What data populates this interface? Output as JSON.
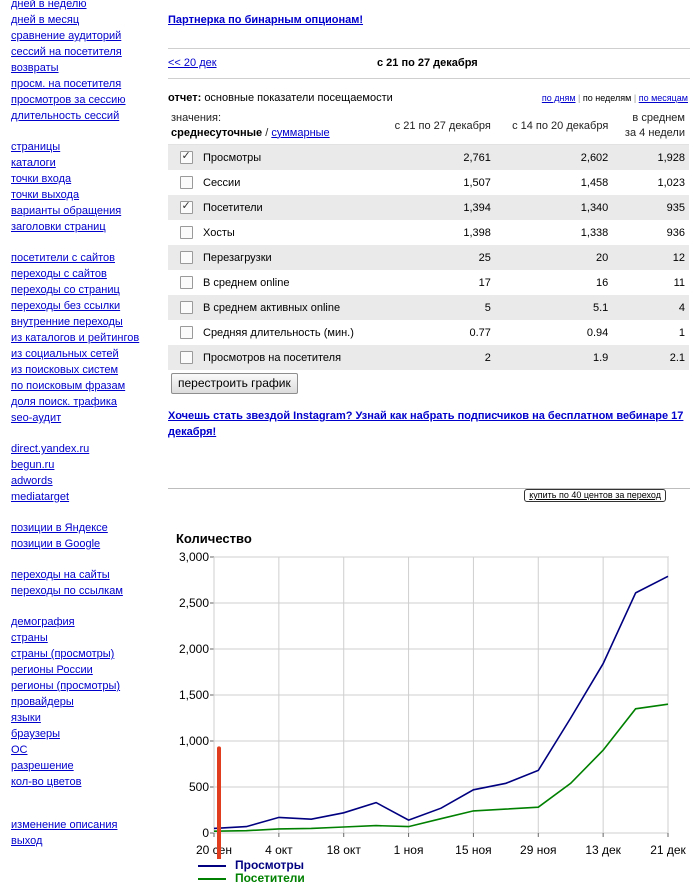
{
  "sidebar": {
    "groups": [
      [
        "дней в неделю",
        "дней в месяц",
        "сравнение аудиторий",
        "сессий на посетителя",
        "возвраты",
        "просм. на посетителя",
        "просмотров за сессию",
        "длительность сессий"
      ],
      [
        "страницы",
        "каталоги",
        "точки входа",
        "точки выхода",
        "варианты обращения",
        "заголовки страниц"
      ],
      [
        "посетители с сайтов",
        "переходы с сайтов",
        "переходы со страниц",
        "переходы без ссылки",
        "внутренние переходы",
        "из каталогов и рейтингов",
        "из социальных сетей",
        "из поисковых систем",
        "по поисковым фразам",
        "доля поиск. трафика",
        "seo-аудит"
      ],
      [
        "direct.yandex.ru",
        "begun.ru",
        "adwords",
        "mediatarget"
      ],
      [
        "позиции в Яндексе",
        "позиции в Google"
      ],
      [
        "переходы на сайты",
        "переходы по ссылкам"
      ],
      [
        "демография",
        "страны",
        "страны (просмотры)",
        "регионы России",
        "регионы (просмотры)",
        "провайдеры",
        "языки",
        "браузеры",
        "ОС",
        "разрешение",
        "кол-во цветов"
      ],
      [
        "изменение описания",
        "выход"
      ]
    ]
  },
  "promo1": "Партнерка по бинарным опционам!",
  "weeknav": {
    "prev": "<< 20 дек",
    "current": "с 21 по 27 декабря"
  },
  "report": {
    "label": "отчет:",
    "title": "основные показатели посещаемости",
    "period_links": [
      "по дням",
      "по неделям",
      "по месяцам"
    ]
  },
  "table": {
    "values_label": "значения:",
    "mode_active": "среднесуточные",
    "mode_sep": " / ",
    "mode_other": "суммарные",
    "col1": "с 21 по 27 декабря",
    "col2": "с 14 по 20 декабря",
    "col3_line1": "в среднем",
    "col3_line2": "за 4 недели",
    "rows": [
      {
        "checked": true,
        "name": "Просмотры",
        "c1": "2,761",
        "c2": "2,602",
        "c3": "1,928"
      },
      {
        "checked": false,
        "name": "Сессии",
        "c1": "1,507",
        "c2": "1,458",
        "c3": "1,023"
      },
      {
        "checked": true,
        "name": "Посетители",
        "c1": "1,394",
        "c2": "1,340",
        "c3": "935"
      },
      {
        "checked": false,
        "name": "Хосты",
        "c1": "1,398",
        "c2": "1,338",
        "c3": "936"
      },
      {
        "checked": false,
        "name": "Перезагрузки",
        "c1": "25",
        "c2": "20",
        "c3": "12"
      },
      {
        "checked": false,
        "name": "В среднем online",
        "c1": "17",
        "c2": "16",
        "c3": "11"
      },
      {
        "checked": false,
        "name": "В среднем активных online",
        "c1": "5",
        "c2": "5.1",
        "c3": "4"
      },
      {
        "checked": false,
        "name": "Средняя длительность (мин.)",
        "c1": "0.77",
        "c2": "0.94",
        "c3": "1"
      },
      {
        "checked": false,
        "name": "Просмотров на посетителя",
        "c1": "2",
        "c2": "1.9",
        "c3": "2.1"
      }
    ]
  },
  "rebuild_button": "перестроить график",
  "promo2": "Хочешь стать звездой Instagram? Узнай как набрать подписчиков на бесплатном вебинаре 17 декабря!",
  "buy_button": "купить по 40 центов за переход",
  "chart_data": {
    "type": "line",
    "ylabel": "Количество",
    "ylim": [
      0,
      3000
    ],
    "yticks": [
      "0",
      "500",
      "1,000",
      "1,500",
      "2,000",
      "2,500",
      "3,000"
    ],
    "xtick_labels": [
      "20 сен",
      "4 окт",
      "18 окт",
      "1 ноя",
      "15 ноя",
      "29 ноя",
      "13 дек",
      "21 дек"
    ],
    "x": [
      "2015-09-20",
      "2015-09-27",
      "2015-10-04",
      "2015-10-11",
      "2015-10-18",
      "2015-10-25",
      "2015-11-01",
      "2015-11-08",
      "2015-11-15",
      "2015-11-22",
      "2015-11-29",
      "2015-12-06",
      "2015-12-13",
      "2015-12-20",
      "2015-12-27"
    ],
    "series": [
      {
        "name": "Просмотры",
        "color": "#000080",
        "values": [
          50,
          70,
          170,
          150,
          220,
          330,
          140,
          270,
          470,
          540,
          680,
          1250,
          1840,
          2610,
          2790
        ]
      },
      {
        "name": "Посетители",
        "color": "#008000",
        "values": [
          20,
          25,
          45,
          50,
          65,
          80,
          70,
          155,
          240,
          260,
          280,
          540,
          900,
          1350,
          1400
        ]
      }
    ],
    "grid": true,
    "annotation_color": "#e03c1e",
    "legend_position": "bottom-left"
  }
}
